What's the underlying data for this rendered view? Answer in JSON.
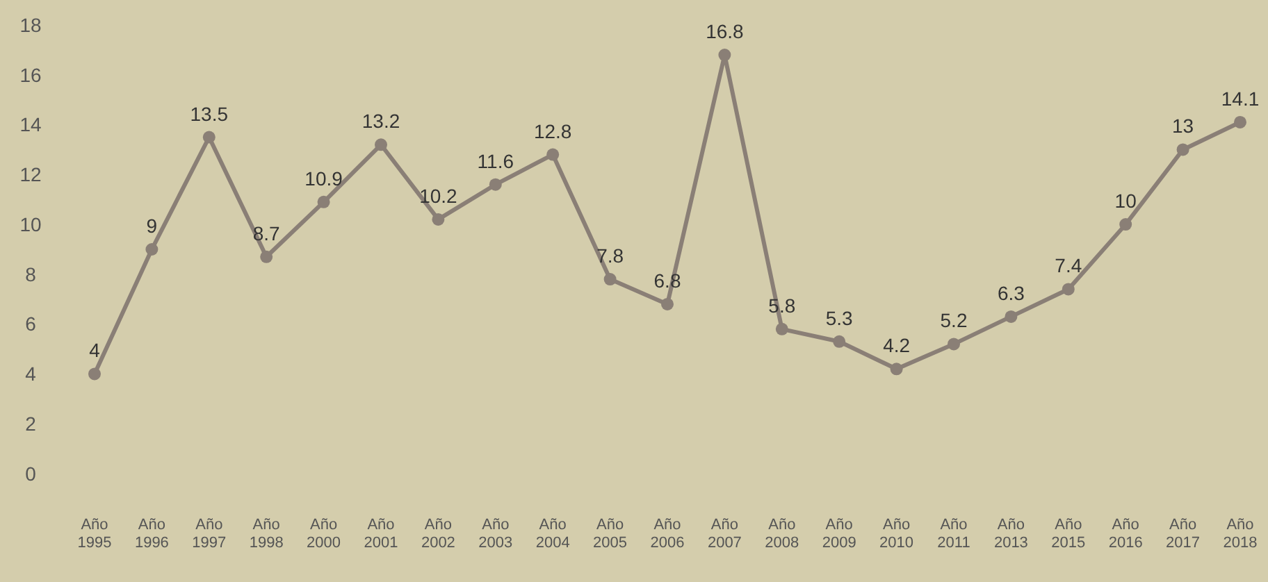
{
  "chart_data": {
    "type": "line",
    "categories": [
      "Año 1995",
      "Año 1996",
      "Año 1997",
      "Año 1998",
      "Año 2000",
      "Año 2001",
      "Año 2002",
      "Año 2003",
      "Año 2004",
      "Año 2005",
      "Año 2006",
      "Año 2007",
      "Año 2008",
      "Año 2009",
      "Año 2010",
      "Año 2011",
      "Año 2013",
      "Año 2015",
      "Año 2016",
      "Año 2017",
      "Año 2018"
    ],
    "series": [
      {
        "color": "#8a7f76",
        "values": [
          4,
          9,
          13.5,
          8.7,
          10.9,
          13.2,
          10.2,
          11.6,
          12.8,
          7.8,
          6.8,
          16.8,
          5.8,
          5.3,
          4.2,
          5.2,
          6.3,
          7.4,
          10,
          13,
          14.1
        ]
      }
    ],
    "ylim": [
      0,
      18
    ],
    "yticks": [
      0,
      2,
      4,
      6,
      8,
      10,
      12,
      14,
      16,
      18
    ],
    "marker": "circle",
    "line_style": "solid",
    "data_labels": true
  }
}
